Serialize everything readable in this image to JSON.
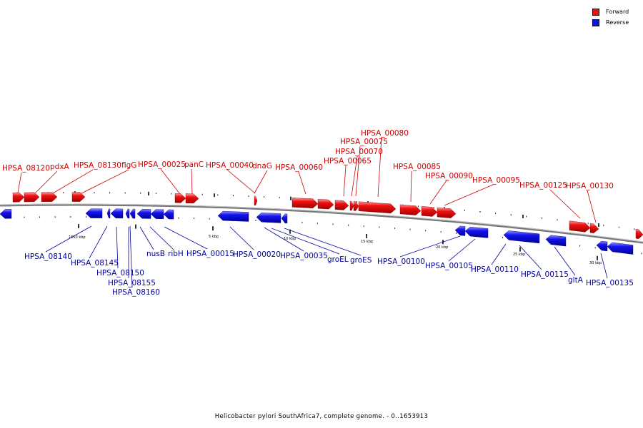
{
  "legend": [
    {
      "label": "Forward",
      "color": "#ee1111"
    },
    {
      "label": "Reverse",
      "color": "#1111ee"
    }
  ],
  "footer": "Helicobacter pylori SouthAfrica7, complete genome. - 0..1653913",
  "axis_labels": [
    "1650 kbp",
    "5 kbp",
    "10 kbp",
    "15 kbp",
    "20 kbp",
    "25 kbp",
    "30 kbp"
  ],
  "colors": {
    "forward": "#ee1111",
    "reverse": "#1111ee",
    "forward_text": "#cc0000",
    "reverse_text": "#000099",
    "backbone": "#777777"
  },
  "genes": {
    "forward": [
      "HPSA_08120",
      "pdxA",
      "HPSA_08130",
      "flgG",
      "HPSA_00025",
      "panC",
      "HPSA_00040",
      "dnaG",
      "HPSA_00060",
      "HPSA_00065",
      "HPSA_00070",
      "HPSA_00075",
      "HPSA_00080",
      "HPSA_00085",
      "HPSA_00090",
      "HPSA_00095",
      "HPSA_00125",
      "HPSA_00130"
    ],
    "reverse": [
      "HPSA_08140",
      "HPSA_08145",
      "HPSA_08150",
      "HPSA_08155",
      "HPSA_08160",
      "nusB",
      "ribH",
      "HPSA_00015",
      "HPSA_00020",
      "HPSA_00035",
      "groEL",
      "groES",
      "HPSA_00100",
      "HPSA_00105",
      "HPSA_00110",
      "HPSA_00115",
      "gltA",
      "HPSA_00135"
    ]
  }
}
